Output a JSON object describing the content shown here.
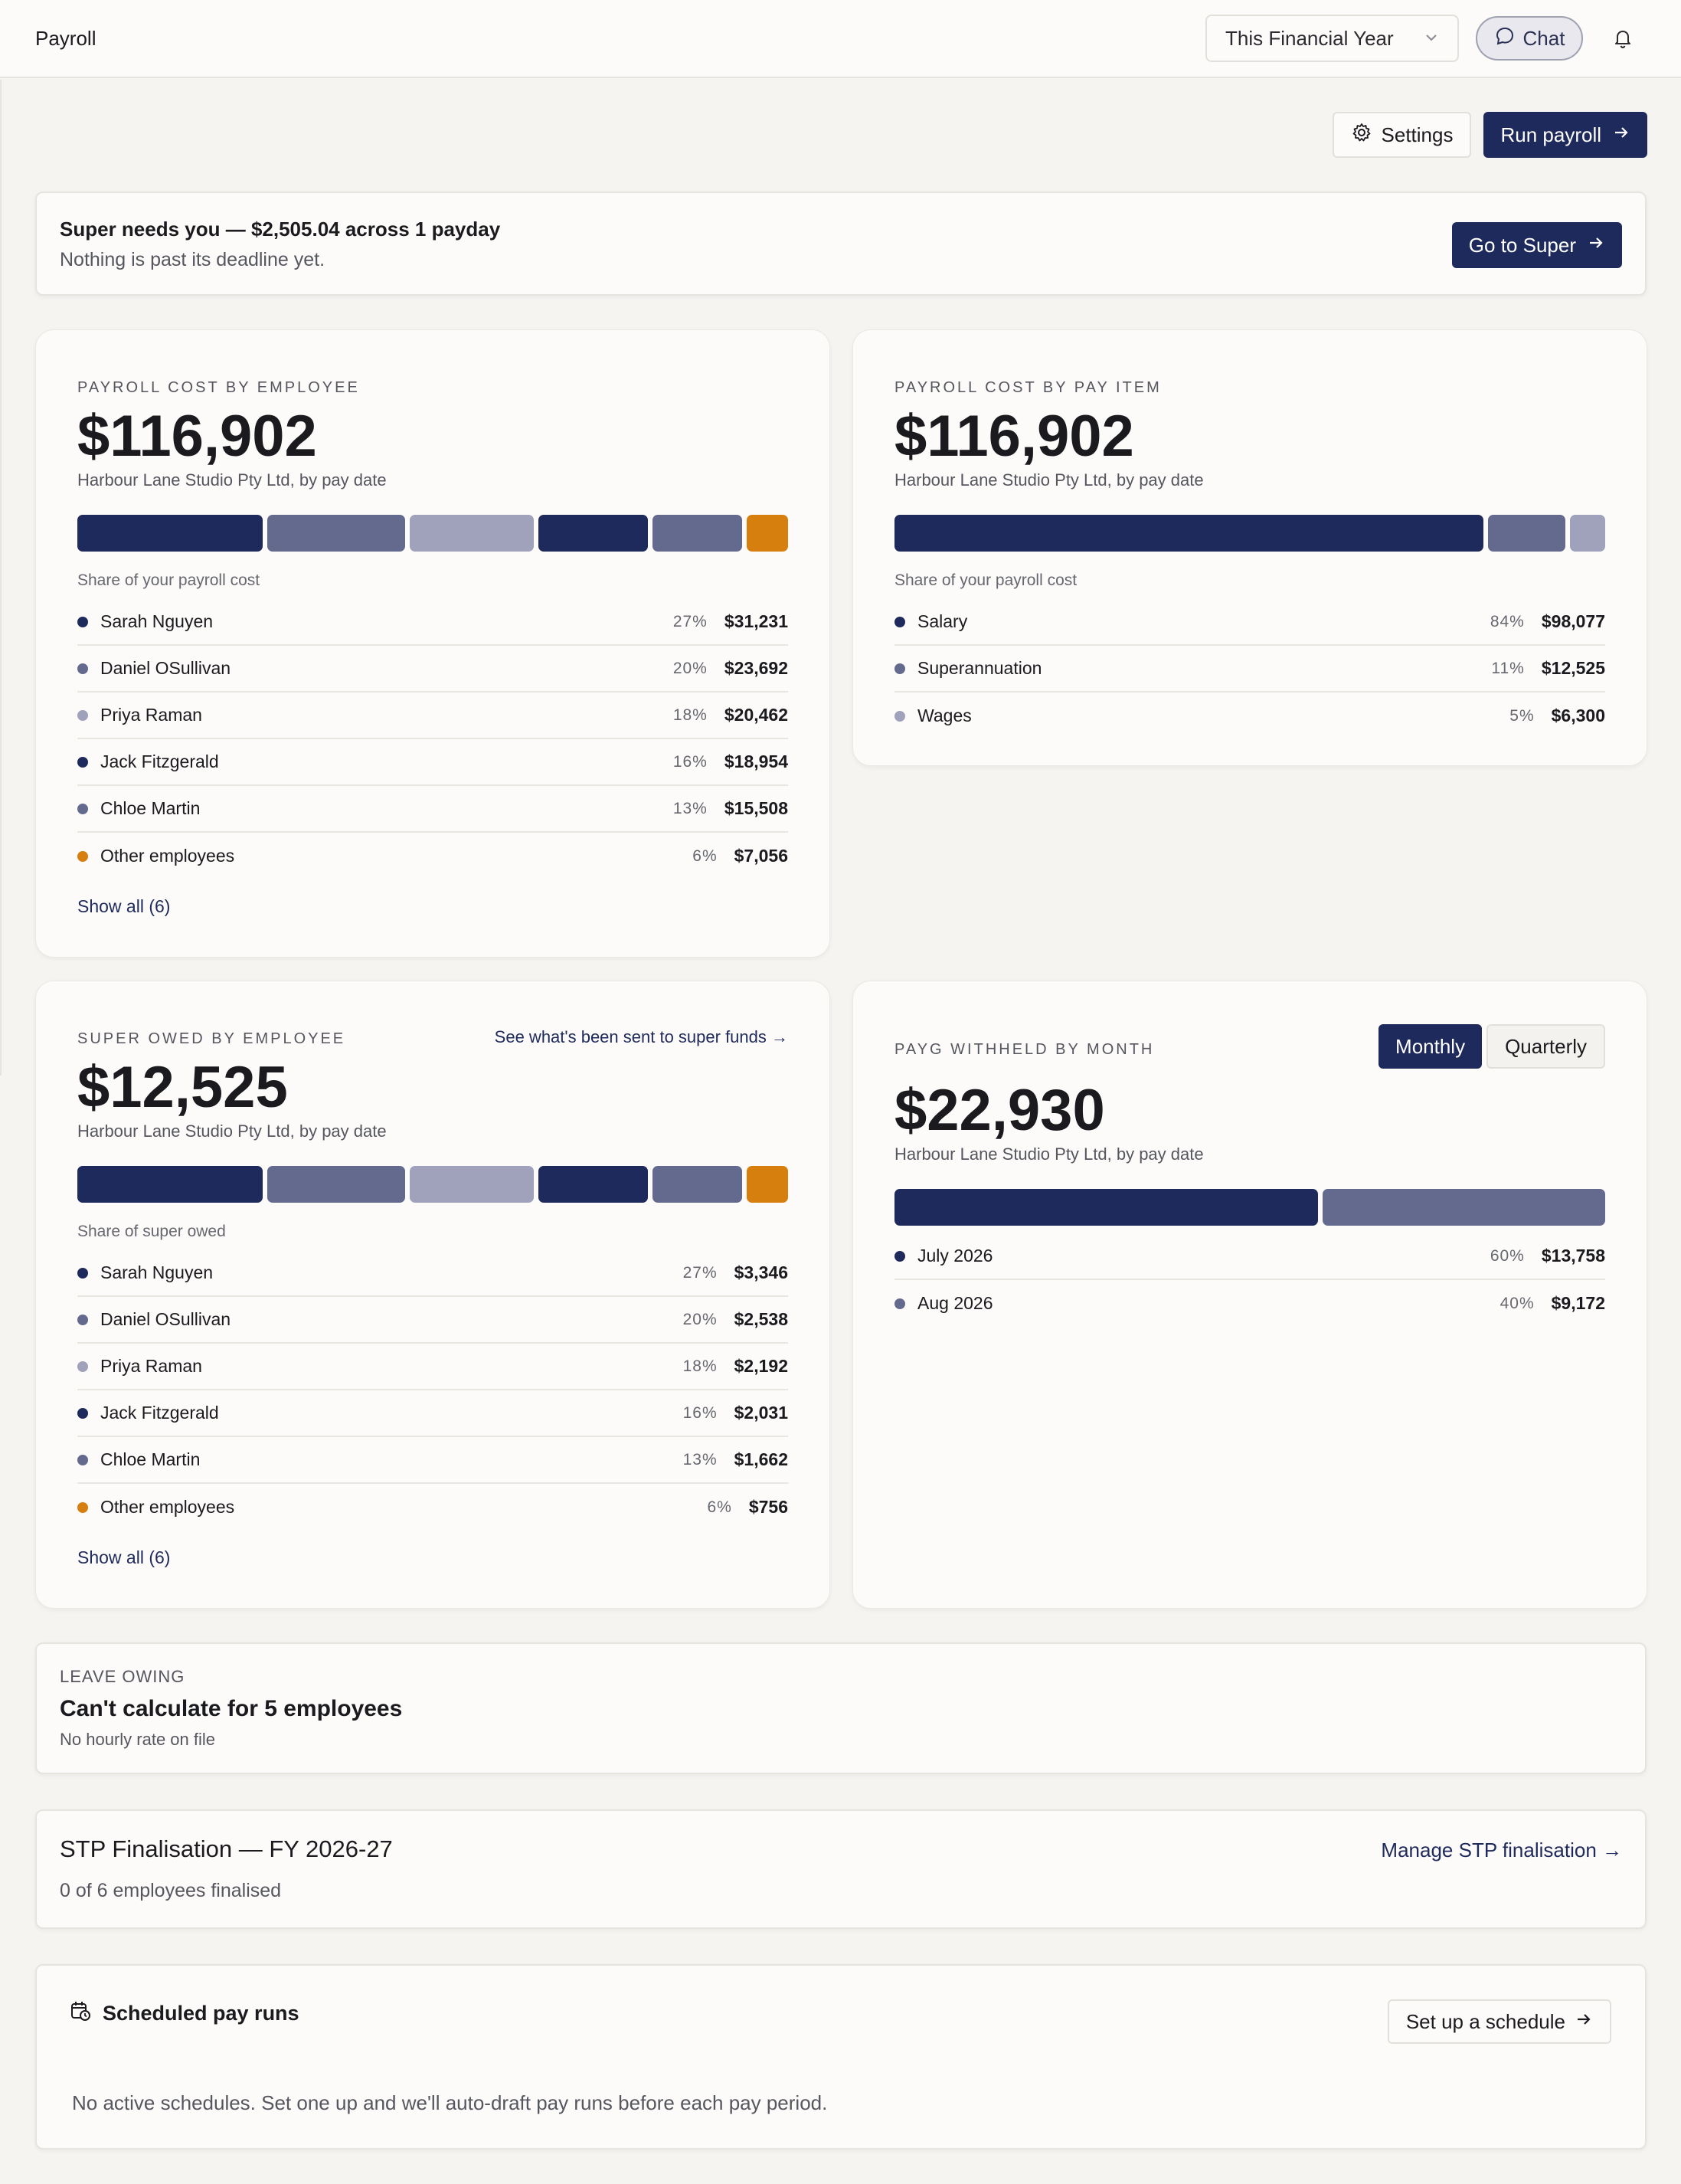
{
  "header": {
    "title": "Payroll",
    "period_select": "This Financial Year",
    "chat_label": "Chat"
  },
  "actions": {
    "settings_label": "Settings",
    "run_payroll_label": "Run payroll"
  },
  "super_banner": {
    "title": "Super needs you — $2,505.04 across 1 payday",
    "subtitle": "Nothing is past its deadline yet.",
    "button_label": "Go to Super"
  },
  "cost_by_employee": {
    "eyebrow": "PAYROLL COST BY EMPLOYEE",
    "total": "$116,902",
    "subtitle": "Harbour Lane Studio Pty Ltd, by pay date",
    "share_label": "Share of your payroll cost",
    "rows": [
      {
        "name": "Sarah Nguyen",
        "pct": "27%",
        "amount": "$31,231",
        "share": 27,
        "color": "#1f2a5c"
      },
      {
        "name": "Daniel OSullivan",
        "pct": "20%",
        "amount": "$23,692",
        "share": 20,
        "color": "#636a8e"
      },
      {
        "name": "Priya Raman",
        "pct": "18%",
        "amount": "$20,462",
        "share": 18,
        "color": "#9fa2ba"
      },
      {
        "name": "Jack Fitzgerald",
        "pct": "16%",
        "amount": "$18,954",
        "share": 16,
        "color": "#1f2a5c"
      },
      {
        "name": "Chloe Martin",
        "pct": "13%",
        "amount": "$15,508",
        "share": 13,
        "color": "#636a8e"
      },
      {
        "name": "Other employees",
        "pct": "6%",
        "amount": "$7,056",
        "share": 6,
        "color": "#d67f0e"
      }
    ],
    "show_all": "Show all (6)"
  },
  "cost_by_pay_item": {
    "eyebrow": "PAYROLL COST BY PAY ITEM",
    "total": "$116,902",
    "subtitle": "Harbour Lane Studio Pty Ltd, by pay date",
    "share_label": "Share of your payroll cost",
    "rows": [
      {
        "name": "Salary",
        "pct": "84%",
        "amount": "$98,077",
        "share": 84,
        "color": "#1f2a5c"
      },
      {
        "name": "Superannuation",
        "pct": "11%",
        "amount": "$12,525",
        "share": 11,
        "color": "#636a8e"
      },
      {
        "name": "Wages",
        "pct": "5%",
        "amount": "$6,300",
        "share": 5,
        "color": "#9fa2ba"
      }
    ]
  },
  "super_owed": {
    "eyebrow": "SUPER OWED BY EMPLOYEE",
    "link": "See what's been sent to super funds →",
    "total": "$12,525",
    "subtitle": "Harbour Lane Studio Pty Ltd, by pay date",
    "share_label": "Share of super owed",
    "rows": [
      {
        "name": "Sarah Nguyen",
        "pct": "27%",
        "amount": "$3,346",
        "share": 27,
        "color": "#1f2a5c"
      },
      {
        "name": "Daniel OSullivan",
        "pct": "20%",
        "amount": "$2,538",
        "share": 20,
        "color": "#636a8e"
      },
      {
        "name": "Priya Raman",
        "pct": "18%",
        "amount": "$2,192",
        "share": 18,
        "color": "#9fa2ba"
      },
      {
        "name": "Jack Fitzgerald",
        "pct": "16%",
        "amount": "$2,031",
        "share": 16,
        "color": "#1f2a5c"
      },
      {
        "name": "Chloe Martin",
        "pct": "13%",
        "amount": "$1,662",
        "share": 13,
        "color": "#636a8e"
      },
      {
        "name": "Other employees",
        "pct": "6%",
        "amount": "$756",
        "share": 6,
        "color": "#d67f0e"
      }
    ],
    "show_all": "Show all (6)"
  },
  "payg": {
    "eyebrow": "PAYG WITHHELD BY MONTH",
    "toggle": {
      "monthly": "Monthly",
      "quarterly": "Quarterly"
    },
    "total": "$22,930",
    "subtitle": "Harbour Lane Studio Pty Ltd, by pay date",
    "rows": [
      {
        "name": "July 2026",
        "pct": "60%",
        "amount": "$13,758",
        "share": 60,
        "color": "#1f2a5c"
      },
      {
        "name": "Aug 2026",
        "pct": "40%",
        "amount": "$9,172",
        "share": 40,
        "color": "#636a8e"
      }
    ]
  },
  "leave": {
    "eyebrow": "LEAVE OWING",
    "title": "Can't calculate for 5 employees",
    "subtitle": "No hourly rate on file"
  },
  "stp": {
    "title": "STP Finalisation — FY 2026-27",
    "subtitle": "0 of 6 employees finalised",
    "link": "Manage STP finalisation →"
  },
  "schedule": {
    "title": "Scheduled pay runs",
    "button_label": "Set up a schedule",
    "subtitle": "No active schedules. Set one up and we'll auto-draft pay runs before each pay period."
  }
}
